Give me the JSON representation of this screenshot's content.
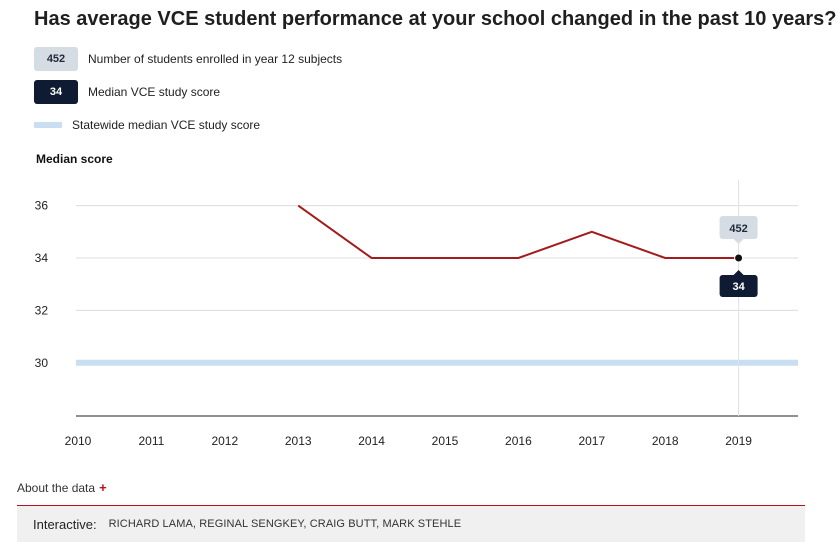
{
  "title": "Has average VCE student performance at your school changed in the past 10 years?",
  "legend": {
    "enrolled_value": "452",
    "enrolled_label": "Number of students enrolled in year 12 subjects",
    "median_value": "34",
    "median_label": "Median VCE study score",
    "statewide_label": "Statewide median VCE study score"
  },
  "colors": {
    "school_line": "#a31b1b",
    "statewide_line": "#c9def0",
    "dark_badge": "#0f1b33",
    "light_badge": "#d6dce4",
    "accent": "#b5121b"
  },
  "chart_data": {
    "type": "line",
    "ylabel": "Median score",
    "x": [
      "2010",
      "2011",
      "2012",
      "2013",
      "2014",
      "2015",
      "2016",
      "2017",
      "2018",
      "2019"
    ],
    "y_ticks": [
      30,
      32,
      34,
      36
    ],
    "ylim": [
      28,
      37
    ],
    "grid": true,
    "series": [
      {
        "name": "Median VCE study score",
        "values": [
          null,
          null,
          null,
          36,
          34,
          34,
          34,
          35,
          34,
          34
        ]
      },
      {
        "name": "Statewide median VCE study score",
        "values": [
          30,
          30,
          30,
          30,
          30,
          30,
          30,
          30,
          30,
          30
        ]
      }
    ],
    "tooltip": {
      "x": "2019",
      "enrolled": "452",
      "median": "34"
    }
  },
  "about_label": "About the data",
  "about_plus": "+",
  "footer": {
    "label": "Interactive:",
    "names": "RICHARD LAMA, REGINAL SENGKEY, CRAIG BUTT, MARK STEHLE"
  }
}
